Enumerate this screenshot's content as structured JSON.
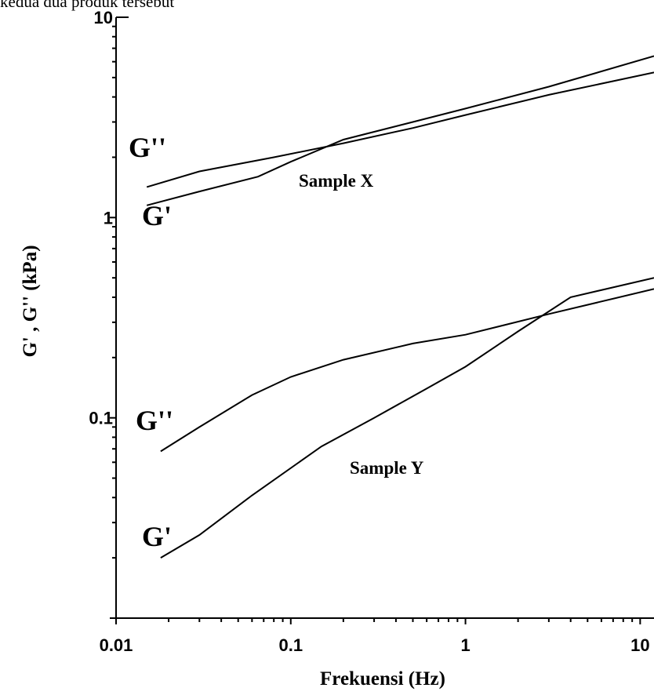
{
  "caption": "kedua dua produk tersebut",
  "chart_data": {
    "type": "line",
    "xlabel": "Frekuensi (Hz)",
    "ylabel": "G' , G'' (kPa)",
    "x_scale": "log",
    "y_scale": "log",
    "xlim": [
      0.01,
      12
    ],
    "ylim": [
      0.01,
      10
    ],
    "x_ticks": [
      {
        "value": 0.01,
        "label": "0.01"
      },
      {
        "value": 0.1,
        "label": "0.1"
      },
      {
        "value": 1,
        "label": "1"
      },
      {
        "value": 10,
        "label": "10"
      }
    ],
    "y_ticks": [
      {
        "value": 0.1,
        "label": "0.1"
      },
      {
        "value": 1,
        "label": "1"
      },
      {
        "value": 10,
        "label": "10"
      }
    ],
    "grid": false,
    "annotations": {
      "sample_x": "Sample X",
      "sample_y": "Sample Y"
    },
    "series": [
      {
        "name": "G''",
        "group": "Sample X",
        "x": [
          0.015,
          0.03,
          0.08,
          0.2,
          0.5,
          1,
          3,
          12
        ],
        "y": [
          1.42,
          1.7,
          2.0,
          2.35,
          2.8,
          3.25,
          4.1,
          5.3
        ]
      },
      {
        "name": "G'",
        "group": "Sample X",
        "x": [
          0.015,
          0.03,
          0.065,
          0.1,
          0.2,
          0.5,
          1,
          3,
          12
        ],
        "y": [
          1.15,
          1.35,
          1.6,
          1.9,
          2.45,
          3.0,
          3.5,
          4.5,
          6.4
        ]
      },
      {
        "name": "G''",
        "group": "Sample Y",
        "x": [
          0.018,
          0.03,
          0.06,
          0.1,
          0.2,
          0.5,
          1,
          3,
          12
        ],
        "y": [
          0.068,
          0.09,
          0.13,
          0.16,
          0.195,
          0.235,
          0.26,
          0.33,
          0.44
        ]
      },
      {
        "name": "G'",
        "group": "Sample Y",
        "x": [
          0.018,
          0.03,
          0.06,
          0.15,
          0.3,
          0.6,
          1,
          2,
          4,
          12
        ],
        "y": [
          0.02,
          0.026,
          0.041,
          0.072,
          0.1,
          0.14,
          0.18,
          0.27,
          0.4,
          0.5
        ]
      }
    ]
  }
}
